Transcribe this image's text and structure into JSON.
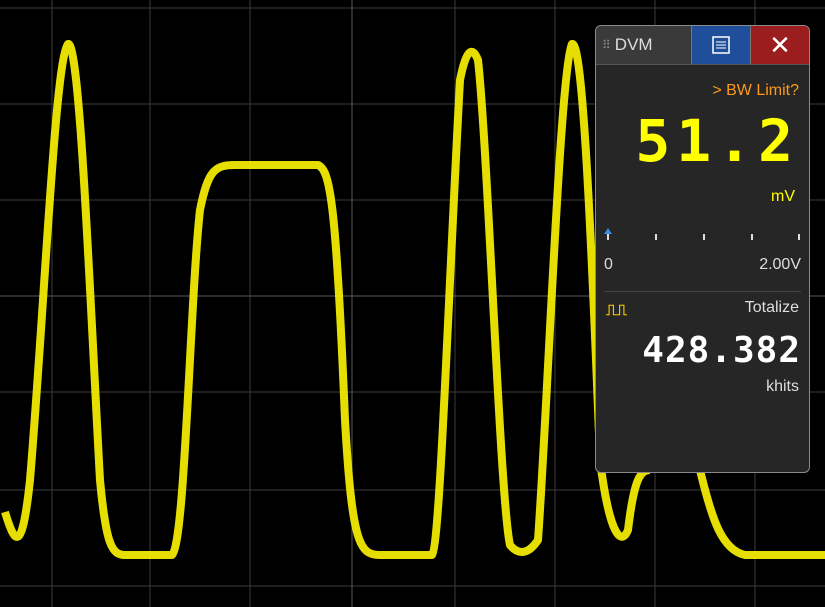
{
  "panel": {
    "title": "DVM",
    "warning": "> BW Limit?",
    "reading": "51.2",
    "reading_unit": "mV",
    "scale_min": "0",
    "scale_max": "2.00V",
    "counter_label": "Totalize",
    "counter_value": "428.382",
    "counter_unit": "khits"
  }
}
